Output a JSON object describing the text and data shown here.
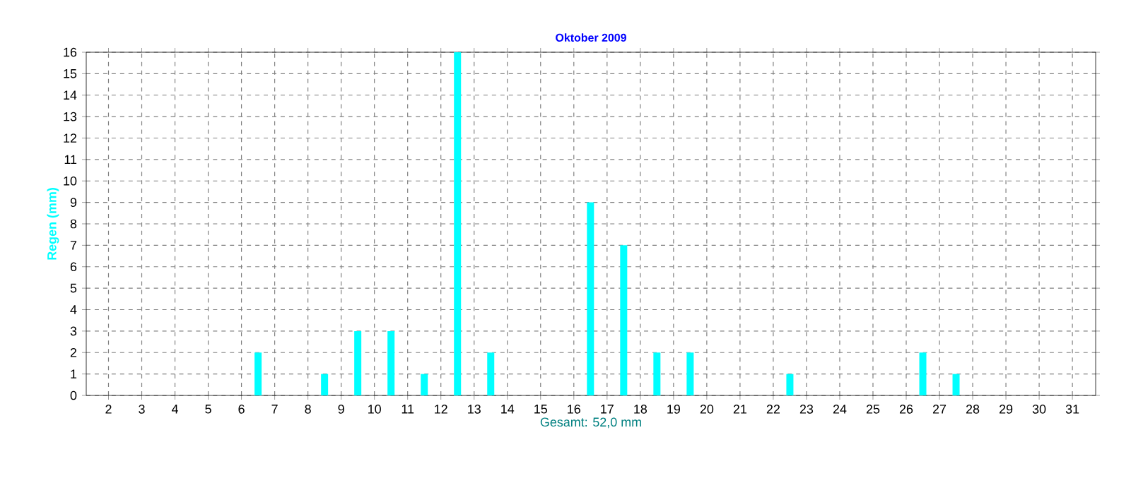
{
  "chart_data": {
    "type": "bar",
    "title": "Oktober 2009",
    "xlabel": "Gesamt: 52,0 mm",
    "ylabel": "Regen  (mm)",
    "x": [
      1.5,
      2.5,
      3.5,
      4.5,
      5.5,
      6.5,
      7.5,
      8.5,
      9.5,
      10.5,
      11.5,
      12.5,
      13.5,
      14.5,
      15.5,
      16.5,
      17.5,
      18.5,
      19.5,
      20.5,
      21.5,
      22.5,
      23.5,
      24.5,
      25.5,
      26.5,
      27.5,
      28.5,
      29.5,
      30.5,
      31.5
    ],
    "values": [
      0,
      0,
      0,
      0,
      0,
      2,
      0,
      1,
      3,
      3,
      1,
      16,
      2,
      0,
      0,
      9,
      7,
      2,
      2,
      0,
      0,
      1,
      0,
      0,
      0,
      2,
      1,
      0,
      0,
      0,
      0
    ],
    "color": "#00ffff",
    "xlim": [
      1.33,
      31.7
    ],
    "xticks": [
      2,
      3,
      4,
      5,
      6,
      7,
      8,
      9,
      10,
      11,
      12,
      13,
      14,
      15,
      16,
      17,
      18,
      19,
      20,
      21,
      22,
      23,
      24,
      25,
      26,
      27,
      28,
      29,
      30,
      31
    ],
    "ylim": [
      0,
      16
    ],
    "yticks": [
      0,
      1,
      2,
      3,
      4,
      5,
      6,
      7,
      8,
      9,
      10,
      11,
      12,
      13,
      14,
      15,
      16
    ],
    "grid": true
  }
}
